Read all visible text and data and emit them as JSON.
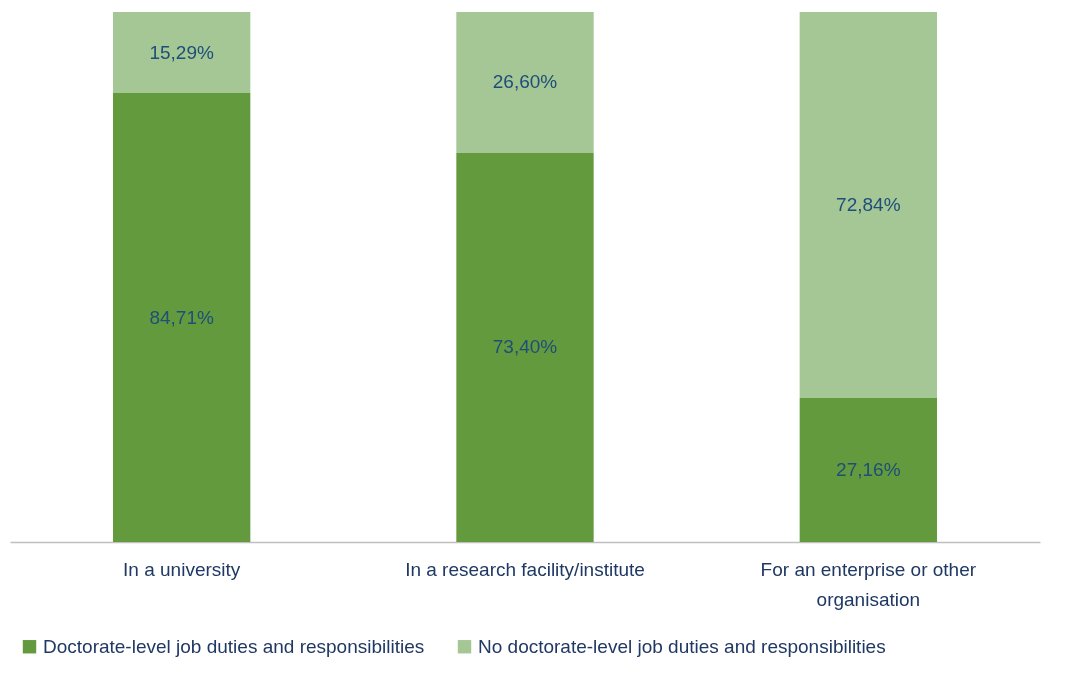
{
  "chart_data": {
    "type": "bar",
    "stacked": true,
    "ylim": [
      0,
      100
    ],
    "legend": "bottom",
    "categories": [
      "In a university",
      "In a research facility/institute",
      "For an enterprise or other organisation"
    ],
    "series": [
      {
        "name": "Doctorate-level job duties and responsibilities",
        "color": "#639a3d",
        "values": [
          84.71,
          73.4,
          27.16
        ],
        "value_labels": [
          "84,71%",
          "73,40%",
          "27,16%"
        ]
      },
      {
        "name": "No doctorate-level job duties and responsibilities",
        "color": "#a4c795",
        "values": [
          15.29,
          26.6,
          72.84
        ],
        "value_labels": [
          "15,29%",
          "26,60%",
          "72,84%"
        ]
      }
    ]
  }
}
